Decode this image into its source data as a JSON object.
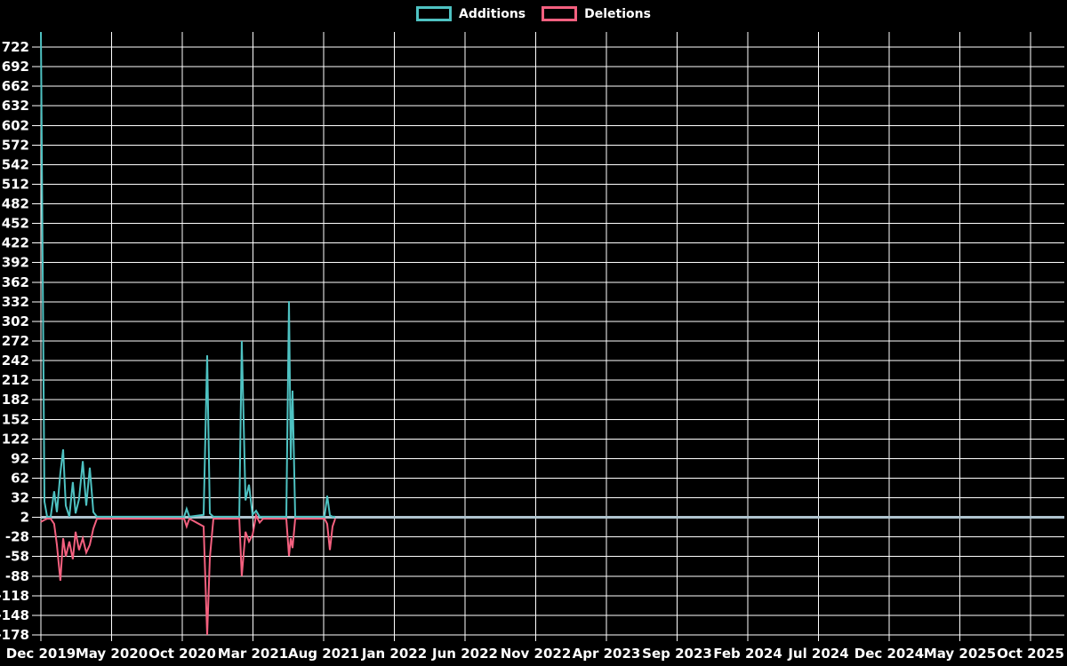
{
  "legend": {
    "additions_label": "Additions",
    "deletions_label": "Deletions"
  },
  "chart_data": {
    "type": "line",
    "title": "",
    "xlabel": "",
    "ylabel": "",
    "x_unit": "months after Dec 2019 tick",
    "ylim": [
      -178,
      746
    ],
    "grid": true,
    "legend_position": "top-center",
    "background_color": "#000000",
    "gridline_color": "#ffffff",
    "tick_label_color": "#ffffff",
    "baseline": {
      "value": 2,
      "color": "#afc3ce",
      "width": 3
    },
    "x_ticks": [
      "Dec 2019",
      "May 2020",
      "Oct 2020",
      "Mar 2021",
      "Aug 2021",
      "Jan 2022",
      "Jun 2022",
      "Nov 2022",
      "Apr 2023",
      "Sep 2023",
      "Feb 2024",
      "Jul 2024",
      "Dec 2024",
      "May 2025",
      "Oct 2025"
    ],
    "y_ticks": [
      722,
      692,
      662,
      632,
      602,
      572,
      542,
      512,
      482,
      452,
      422,
      392,
      362,
      332,
      302,
      272,
      242,
      212,
      182,
      152,
      122,
      92,
      62,
      32,
      2,
      -28,
      -58,
      -88,
      -118,
      -148,
      -178
    ],
    "series": [
      {
        "name": "Additions",
        "color": "#4ec2c2",
        "key": 1
      },
      {
        "name": "Deletions",
        "color": "#f4607f",
        "key": 2
      }
    ],
    "points": [
      [
        0.0,
        745,
        -5
      ],
      [
        0.25,
        26,
        -2
      ],
      [
        0.44,
        3,
        0
      ],
      [
        0.69,
        3,
        0
      ],
      [
        0.94,
        42,
        -8
      ],
      [
        1.13,
        10,
        -40
      ],
      [
        1.38,
        70,
        -95
      ],
      [
        1.57,
        106,
        -30
      ],
      [
        1.76,
        20,
        -58
      ],
      [
        2.01,
        3,
        -35
      ],
      [
        2.26,
        56,
        -62
      ],
      [
        2.45,
        8,
        -20
      ],
      [
        2.7,
        30,
        -48
      ],
      [
        2.96,
        88,
        -30
      ],
      [
        3.21,
        20,
        -52
      ],
      [
        3.46,
        78,
        -40
      ],
      [
        3.71,
        10,
        -15
      ],
      [
        3.96,
        3,
        0
      ],
      [
        10.13,
        3,
        0
      ],
      [
        10.31,
        15,
        -12
      ],
      [
        10.5,
        3,
        0
      ],
      [
        11.51,
        6,
        -12
      ],
      [
        11.76,
        250,
        -178
      ],
      [
        11.95,
        8,
        -60
      ],
      [
        12.2,
        3,
        0
      ],
      [
        14.03,
        3,
        0
      ],
      [
        14.21,
        272,
        -88
      ],
      [
        14.47,
        28,
        -20
      ],
      [
        14.72,
        52,
        -35
      ],
      [
        14.97,
        6,
        -25
      ],
      [
        15.22,
        12,
        5
      ],
      [
        15.47,
        3,
        -6
      ],
      [
        15.72,
        3,
        0
      ],
      [
        17.36,
        3,
        0
      ],
      [
        17.55,
        333,
        -57
      ],
      [
        17.67,
        90,
        -30
      ],
      [
        17.8,
        196,
        -45
      ],
      [
        17.99,
        3,
        0
      ],
      [
        20.06,
        3,
        0
      ],
      [
        20.25,
        35,
        -8
      ],
      [
        20.44,
        5,
        -48
      ],
      [
        20.63,
        3,
        -12
      ],
      [
        20.82,
        3,
        0
      ]
    ]
  }
}
